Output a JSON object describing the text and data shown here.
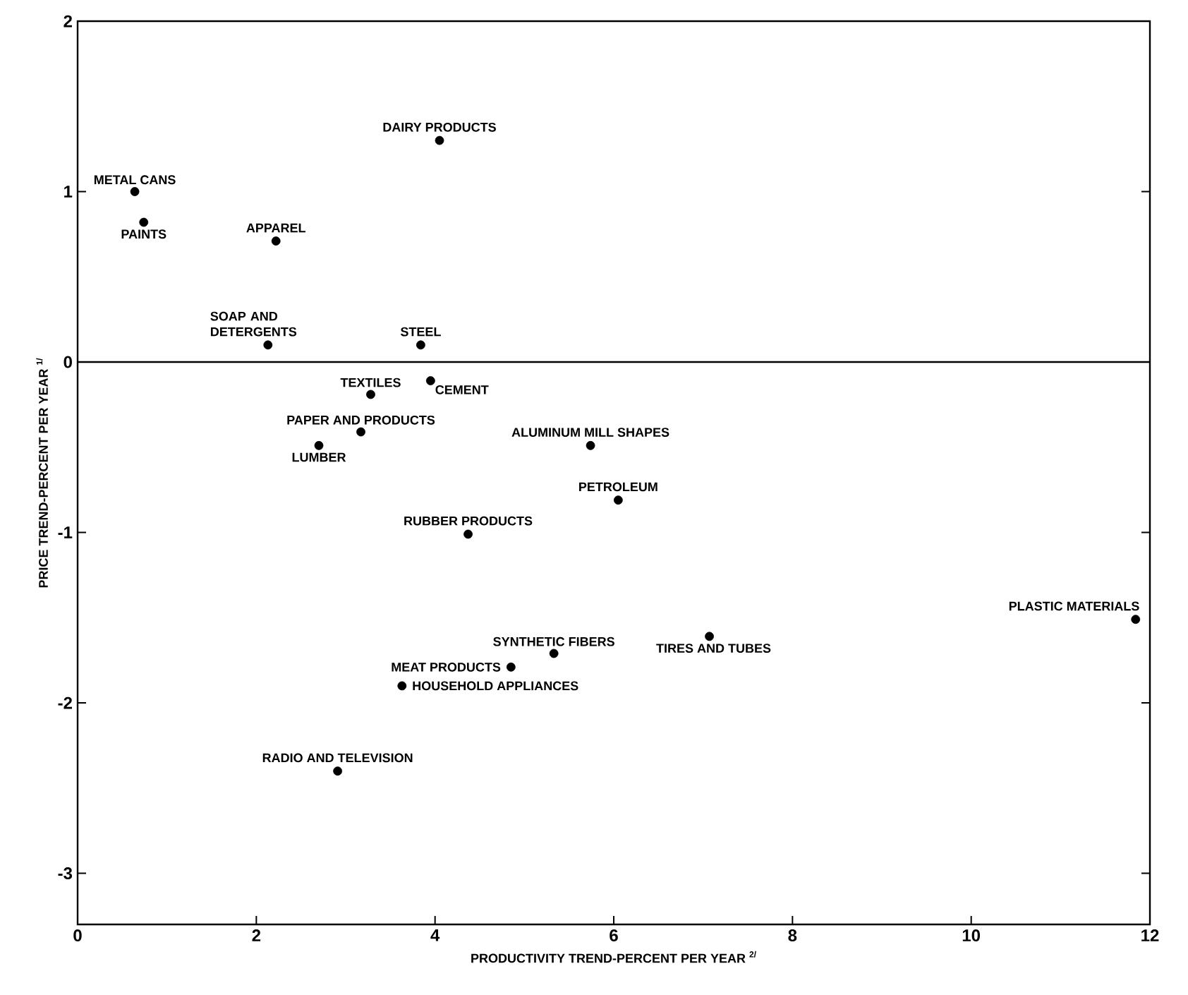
{
  "chart_data": {
    "type": "scatter",
    "xlabel": "PRODUCTIVITY TREND-PERCENT PER YEAR $^{2/}$",
    "ylabel": "PRICE TREND-PERCENT PER YEAR $^{1/}$",
    "xlim": [
      0,
      12
    ],
    "ylim": [
      -3.3,
      2
    ],
    "xticks": [
      0,
      2,
      4,
      6,
      8,
      10,
      12
    ],
    "yticks": [
      -3,
      -2,
      -1,
      0,
      1,
      2
    ],
    "grid": false,
    "marker": "circle",
    "series": [
      {
        "color": "#000000",
        "x": [
          0.64,
          0.74,
          2.22,
          4.05,
          2.13,
          3.84,
          3.28,
          3.95,
          3.17,
          2.7,
          5.74,
          6.05,
          4.37,
          11.84,
          5.33,
          7.07,
          4.85,
          3.63,
          2.91
        ],
        "values": [
          1.0,
          0.82,
          0.71,
          1.3,
          0.1,
          0.1,
          -0.19,
          -0.11,
          -0.41,
          -0.49,
          -0.49,
          -0.81,
          -1.01,
          -1.51,
          -1.71,
          -1.61,
          -1.79,
          -1.9,
          -2.4
        ]
      }
    ],
    "ref_lines": [
      {
        "axis": "y",
        "value": 0,
        "color": "#000000"
      }
    ],
    "annotations": [
      {
        "text": "METAL CANS",
        "x": 0.64,
        "y": 1.0
      },
      {
        "text": "PAINTS",
        "x": 0.74,
        "y": 0.82
      },
      {
        "text": "APPAREL",
        "x": 2.22,
        "y": 0.71
      },
      {
        "text": "DAIRY PRODUCTS",
        "x": 4.05,
        "y": 1.3
      },
      {
        "text": "SOAP AND DETERGENTS",
        "x": 2.13,
        "y": 0.1
      },
      {
        "text": "STEEL",
        "x": 3.84,
        "y": 0.1
      },
      {
        "text": "TEXTILES",
        "x": 3.28,
        "y": -0.19
      },
      {
        "text": "CEMENT",
        "x": 3.95,
        "y": -0.11
      },
      {
        "text": "PAPER AND PRODUCTS",
        "x": 3.17,
        "y": -0.41
      },
      {
        "text": "LUMBER",
        "x": 2.7,
        "y": -0.49
      },
      {
        "text": "ALUMINUM MILL SHAPES",
        "x": 5.74,
        "y": -0.49
      },
      {
        "text": "PETROLEUM",
        "x": 6.05,
        "y": -0.81
      },
      {
        "text": "RUBBER PRODUCTS",
        "x": 4.37,
        "y": -1.01
      },
      {
        "text": "PLASTIC MATERIALS",
        "x": 11.84,
        "y": -1.51
      },
      {
        "text": "SYNTHETIC FIBERS",
        "x": 5.33,
        "y": -1.71
      },
      {
        "text": "TIRES AND TUBES",
        "x": 7.07,
        "y": -1.61
      },
      {
        "text": "MEAT PRODUCTS",
        "x": 4.85,
        "y": -1.79
      },
      {
        "text": "HOUSEHOLD APPLIANCES",
        "x": 3.63,
        "y": -1.9
      },
      {
        "text": "RADIO AND TELEVISION",
        "x": 2.91,
        "y": -2.4
      }
    ]
  }
}
